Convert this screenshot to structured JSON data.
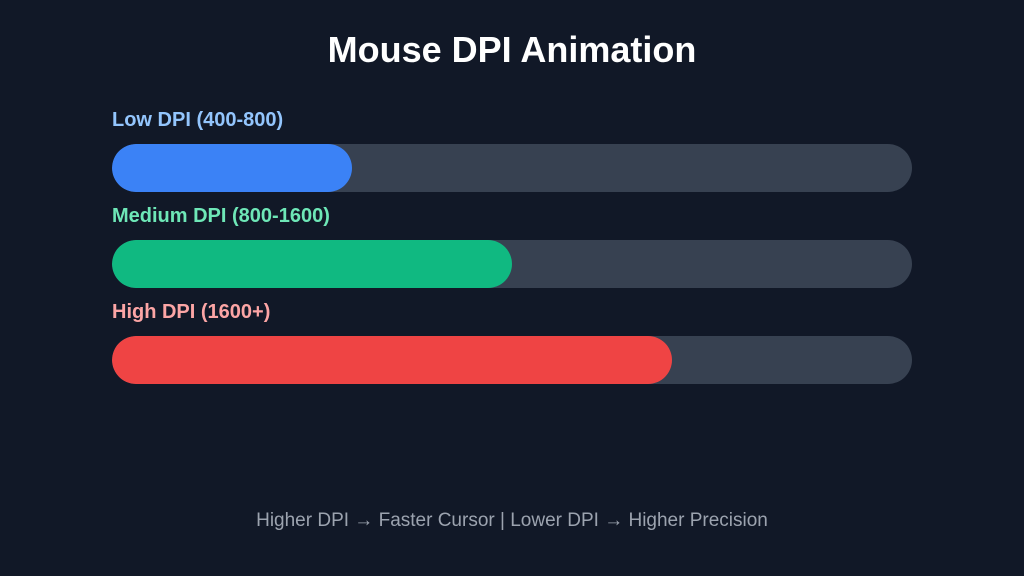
{
  "title": "Mouse DPI Animation",
  "bars": [
    {
      "label": "Low DPI (400-800)",
      "progress_percent": 30,
      "fill_color": "#3b82f6",
      "label_color": "#93c5fd"
    },
    {
      "label": "Medium DPI (800-1600)",
      "progress_percent": 50,
      "fill_color": "#10b981",
      "label_color": "#6ee7b7"
    },
    {
      "label": "High DPI (1600+)",
      "progress_percent": 70,
      "fill_color": "#ef4444",
      "label_color": "#fca5a5"
    }
  ],
  "track_color": "#374151",
  "background_color": "#111827",
  "footer": "Higher DPI → Faster Cursor | Lower DPI → Higher Precision"
}
